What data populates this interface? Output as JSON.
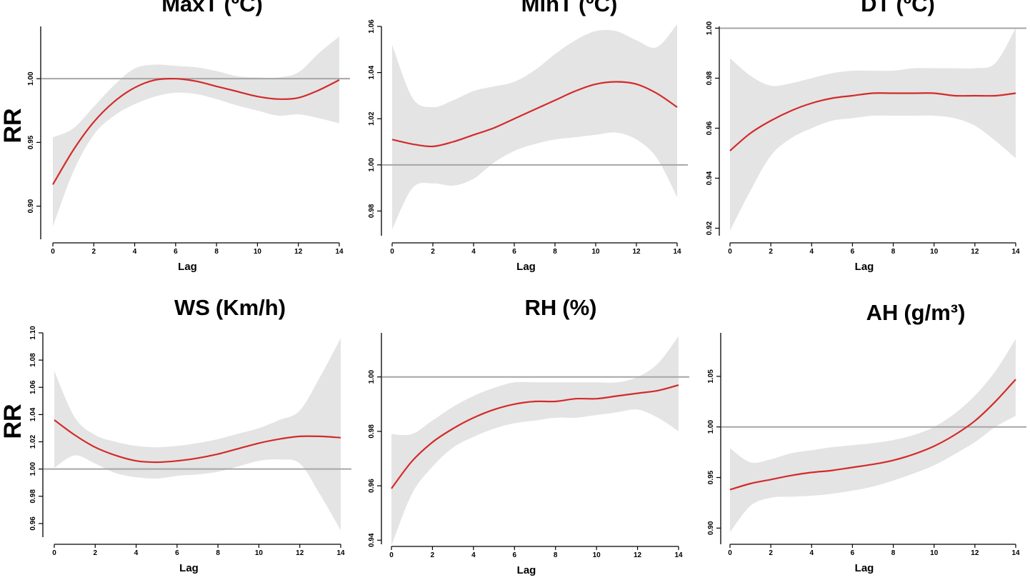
{
  "figure": {
    "row_ylabels": [
      "RR",
      "RR"
    ]
  },
  "colors": {
    "curve": "#d42a2a",
    "band": "#e4e4e4",
    "refline": "#a6a6a6",
    "axis": "#000000"
  },
  "chart_data": [
    {
      "id": "maxt",
      "type": "line",
      "title": "MaxT",
      "title_unit": "(ºC)",
      "xlabel": "Lag",
      "ylabel": "RR",
      "xlim": [
        0,
        14
      ],
      "xticks": [
        0,
        2,
        4,
        6,
        8,
        10,
        12,
        14
      ],
      "xtick_labels": [
        "0",
        "2",
        "4",
        "6",
        "8",
        "10",
        "12",
        "14"
      ],
      "ylim": [
        0.874,
        1.041
      ],
      "yticks": [
        0.9,
        0.95,
        1.0
      ],
      "ytick_labels": [
        "0.90",
        "0.95",
        "1.00"
      ],
      "ref": 1.0,
      "x": [
        0,
        1,
        2,
        3,
        4,
        5,
        6,
        7,
        8,
        9,
        10,
        11,
        12,
        13,
        14
      ],
      "y": [
        0.917,
        0.944,
        0.966,
        0.982,
        0.993,
        0.999,
        1.0,
        0.998,
        0.994,
        0.99,
        0.986,
        0.984,
        0.985,
        0.991,
        0.999
      ],
      "upper": [
        0.954,
        0.961,
        0.978,
        0.995,
        1.008,
        1.011,
        1.01,
        1.009,
        1.006,
        1.002,
        1.001,
        1.001,
        1.005,
        1.02,
        1.033
      ],
      "lower": [
        0.884,
        0.927,
        0.956,
        0.971,
        0.98,
        0.986,
        0.989,
        0.988,
        0.984,
        0.979,
        0.975,
        0.971,
        0.972,
        0.969,
        0.965
      ]
    },
    {
      "id": "mint",
      "type": "line",
      "title": "MinT",
      "title_unit": "(ºC)",
      "xlabel": "Lag",
      "ylabel": "",
      "xlim": [
        0,
        14
      ],
      "xticks": [
        0,
        2,
        4,
        6,
        8,
        10,
        12,
        14
      ],
      "xtick_labels": [
        "0",
        "2",
        "4",
        "6",
        "8",
        "10",
        "12",
        "14"
      ],
      "ylim": [
        0.9693,
        1.06
      ],
      "yticks": [
        0.98,
        1.0,
        1.02,
        1.04,
        1.06
      ],
      "ytick_labels": [
        "0.98",
        "1.00",
        "1.02",
        "1.04",
        "1.06"
      ],
      "ref": 1.0,
      "x": [
        0,
        1,
        2,
        3,
        4,
        5,
        6,
        7,
        8,
        9,
        10,
        11,
        12,
        13,
        14
      ],
      "y": [
        1.011,
        1.009,
        1.008,
        1.01,
        1.013,
        1.016,
        1.02,
        1.024,
        1.028,
        1.032,
        1.035,
        1.036,
        1.035,
        1.031,
        1.025
      ],
      "upper": [
        1.052,
        1.029,
        1.025,
        1.028,
        1.032,
        1.034,
        1.036,
        1.041,
        1.048,
        1.054,
        1.058,
        1.058,
        1.054,
        1.051,
        1.061
      ],
      "lower": [
        0.972,
        0.99,
        0.992,
        0.991,
        0.994,
        1.001,
        1.006,
        1.009,
        1.011,
        1.012,
        1.013,
        1.014,
        1.011,
        1.003,
        0.986
      ]
    },
    {
      "id": "dt",
      "type": "line",
      "title": "DT",
      "title_unit": "(ºC)",
      "xlabel": "Lag",
      "ylabel": "",
      "xlim": [
        0,
        14
      ],
      "xticks": [
        0,
        2,
        4,
        6,
        8,
        10,
        12,
        14
      ],
      "xtick_labels": [
        "0",
        "2",
        "4",
        "6",
        "8",
        "10",
        "12",
        "14"
      ],
      "ylim": [
        0.917,
        1.0007
      ],
      "yticks": [
        0.92,
        0.94,
        0.96,
        0.98,
        1.0
      ],
      "ytick_labels": [
        "0.92",
        "0.94",
        "0.96",
        "0.98",
        "1.00"
      ],
      "ref": 1.0,
      "x": [
        0,
        1,
        2,
        3,
        4,
        5,
        6,
        7,
        8,
        9,
        10,
        11,
        12,
        13,
        14
      ],
      "y": [
        0.951,
        0.958,
        0.963,
        0.967,
        0.97,
        0.972,
        0.973,
        0.974,
        0.974,
        0.974,
        0.974,
        0.973,
        0.973,
        0.973,
        0.974
      ],
      "upper": [
        0.988,
        0.981,
        0.977,
        0.978,
        0.98,
        0.982,
        0.983,
        0.983,
        0.983,
        0.984,
        0.984,
        0.984,
        0.984,
        0.986,
        1.0
      ],
      "lower": [
        0.919,
        0.935,
        0.949,
        0.956,
        0.96,
        0.963,
        0.964,
        0.965,
        0.965,
        0.965,
        0.965,
        0.964,
        0.961,
        0.955,
        0.948
      ]
    },
    {
      "id": "ws",
      "type": "line",
      "title": "WS",
      "title_unit": "(Km/h)",
      "xlabel": "Lag",
      "ylabel": "RR",
      "xlim": [
        0,
        14
      ],
      "xticks": [
        0,
        2,
        4,
        6,
        8,
        10,
        12,
        14
      ],
      "xtick_labels": [
        "0",
        "2",
        "4",
        "6",
        "8",
        "10",
        "12",
        "14"
      ],
      "ylim": [
        0.95,
        1.1
      ],
      "yticks": [
        0.96,
        0.98,
        1.0,
        1.02,
        1.04,
        1.06,
        1.08,
        1.1
      ],
      "ytick_labels": [
        "0.96",
        "0.98",
        "1.00",
        "1.02",
        "1.04",
        "1.06",
        "1.08",
        "1.10"
      ],
      "ref": 1.0,
      "x": [
        0,
        1,
        2,
        3,
        4,
        5,
        6,
        7,
        8,
        9,
        10,
        11,
        12,
        13,
        14
      ],
      "y": [
        1.036,
        1.025,
        1.016,
        1.01,
        1.006,
        1.005,
        1.006,
        1.008,
        1.011,
        1.015,
        1.019,
        1.022,
        1.024,
        1.024,
        1.023
      ],
      "upper": [
        1.072,
        1.038,
        1.025,
        1.02,
        1.017,
        1.016,
        1.017,
        1.019,
        1.022,
        1.026,
        1.03,
        1.036,
        1.043,
        1.068,
        1.096
      ],
      "lower": [
        1.001,
        1.01,
        1.004,
        0.997,
        0.994,
        0.993,
        0.995,
        0.996,
        0.998,
        1.002,
        1.006,
        1.007,
        1.004,
        0.981,
        0.955
      ]
    },
    {
      "id": "rh",
      "type": "line",
      "title": "RH",
      "title_unit": "(%)",
      "xlabel": "Lag",
      "ylabel": "",
      "xlim": [
        0,
        14
      ],
      "xticks": [
        0,
        2,
        4,
        6,
        8,
        10,
        12,
        14
      ],
      "xtick_labels": [
        "0",
        "2",
        "4",
        "6",
        "8",
        "10",
        "12",
        "14"
      ],
      "ylim": [
        0.9385,
        1.0162
      ],
      "yticks": [
        0.94,
        0.96,
        0.98,
        1.0
      ],
      "ytick_labels": [
        "0.94",
        "0.96",
        "0.98",
        "1.00"
      ],
      "ref": 1.0,
      "x": [
        0,
        1,
        2,
        3,
        4,
        5,
        6,
        7,
        8,
        9,
        10,
        11,
        12,
        13,
        14
      ],
      "y": [
        0.959,
        0.969,
        0.976,
        0.981,
        0.985,
        0.988,
        0.99,
        0.991,
        0.991,
        0.992,
        0.992,
        0.993,
        0.994,
        0.995,
        0.997
      ],
      "upper": [
        0.979,
        0.979,
        0.984,
        0.989,
        0.993,
        0.996,
        0.998,
        0.998,
        0.998,
        0.998,
        0.998,
        0.998,
        1.0,
        1.005,
        1.015
      ],
      "lower": [
        0.938,
        0.957,
        0.967,
        0.974,
        0.978,
        0.981,
        0.983,
        0.984,
        0.985,
        0.985,
        0.986,
        0.987,
        0.988,
        0.985,
        0.98
      ]
    },
    {
      "id": "ah",
      "type": "line",
      "title": "AH",
      "title_unit": "(g/m³)",
      "xlabel": "Lag",
      "ylabel": "",
      "xlim": [
        0,
        14
      ],
      "xticks": [
        0,
        2,
        4,
        6,
        8,
        10,
        12,
        14
      ],
      "xtick_labels": [
        "0",
        "2",
        "4",
        "6",
        "8",
        "10",
        "12",
        "14"
      ],
      "ylim": [
        0.884,
        1.093
      ],
      "yticks": [
        0.9,
        0.95,
        1.0,
        1.05
      ],
      "ytick_labels": [
        "0.90",
        "0.95",
        "1.00",
        "1.05"
      ],
      "ref": 1.0,
      "x": [
        0,
        1,
        2,
        3,
        4,
        5,
        6,
        7,
        8,
        9,
        10,
        11,
        12,
        13,
        14
      ],
      "y": [
        0.938,
        0.944,
        0.948,
        0.952,
        0.955,
        0.957,
        0.96,
        0.963,
        0.967,
        0.973,
        0.981,
        0.992,
        1.006,
        1.025,
        1.047
      ],
      "upper": [
        0.979,
        0.965,
        0.968,
        0.974,
        0.977,
        0.98,
        0.982,
        0.984,
        0.987,
        0.992,
        1.0,
        1.013,
        1.031,
        1.055,
        1.087
      ],
      "lower": [
        0.896,
        0.922,
        0.93,
        0.931,
        0.932,
        0.934,
        0.937,
        0.941,
        0.947,
        0.954,
        0.962,
        0.973,
        0.985,
        1.0,
        1.011
      ]
    }
  ]
}
